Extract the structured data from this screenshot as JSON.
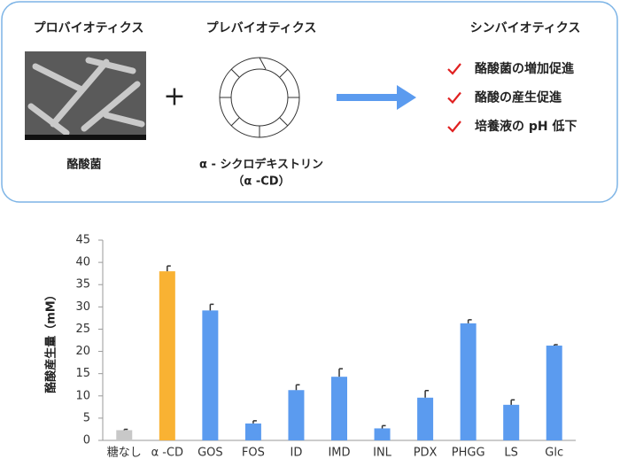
{
  "diagram": {
    "probiotics": "プロバイオティクス",
    "prebiotics": "プレバイオティクス",
    "synbiotics": "シンバイオティクス",
    "bacterium": "酪酸菌",
    "compound": "α - シクロデキストリン",
    "compound_abbr": "（α -CD）",
    "effects": [
      "酪酸菌の増加促進",
      "酪酸の産生促進",
      "培養液の pH 低下"
    ]
  },
  "chart_data": {
    "type": "bar",
    "y_label": "酪酸産生量（mM）",
    "categories": [
      "糖なし",
      "α -CD",
      "GOS",
      "FOS",
      "ID",
      "IMD",
      "INL",
      "PDX",
      "PHGG",
      "LS",
      "Glc"
    ],
    "values": [
      2.3,
      38,
      29.2,
      3.8,
      11.3,
      14.3,
      2.7,
      9.6,
      26.3,
      8,
      21.3
    ],
    "errors": [
      0.2,
      1.2,
      1.4,
      0.6,
      1.2,
      1.8,
      0.6,
      1.6,
      0.8,
      1.1,
      0.2
    ],
    "colors": [
      "#c8c8c8",
      "#f9b233",
      "#5b9bef",
      "#5b9bef",
      "#5b9bef",
      "#5b9bef",
      "#5b9bef",
      "#5b9bef",
      "#5b9bef",
      "#5b9bef",
      "#5b9bef"
    ],
    "ylim": [
      0,
      45
    ],
    "yticks": [
      0,
      5,
      10,
      15,
      20,
      25,
      30,
      35,
      40,
      45
    ]
  }
}
